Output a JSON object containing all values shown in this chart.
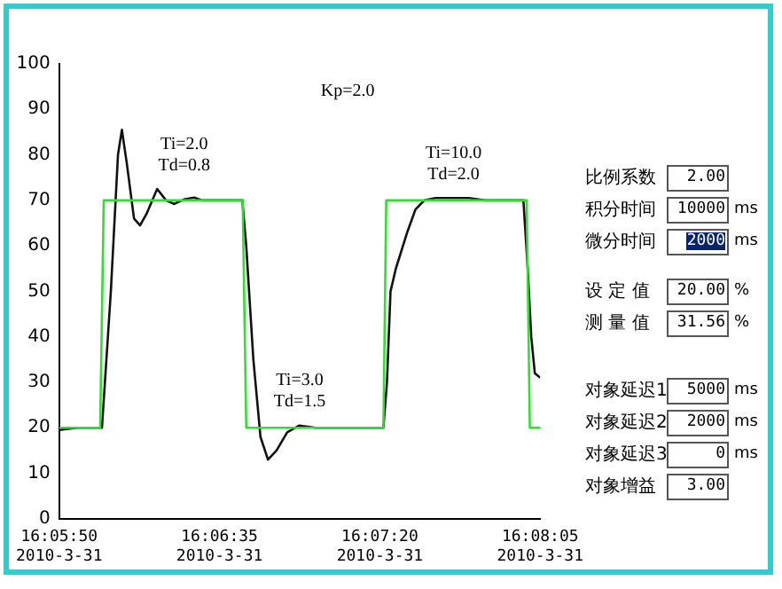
{
  "chart_data": [
    {
      "type": "line",
      "xlim": [
        "2010-03-31T16:05:50",
        "2010-03-31T16:08:05"
      ],
      "xticks": [
        {
          "value": "2010-03-31T16:05:50",
          "label": "16:05:50\n2010-3-31"
        },
        {
          "value": "2010-03-31T16:06:35",
          "label": "16:06:35\n2010-3-31"
        },
        {
          "value": "2010-03-31T16:07:20",
          "label": "16:07:20\n2010-3-31"
        },
        {
          "value": "2010-03-31T16:08:05",
          "label": "16:08:05\n2010-3-31"
        }
      ],
      "ylim": [
        0,
        100
      ],
      "yticks": [
        0,
        10,
        20,
        30,
        40,
        50,
        60,
        70,
        80,
        90,
        100
      ],
      "grid": false,
      "legend": false,
      "marker": "none",
      "line_style": "solid",
      "series": [
        {
          "color": "#33dd33",
          "x": [
            "2010-03-31T16:05:50",
            "2010-03-31T16:06:01.5",
            "2010-03-31T16:06:02.5",
            "2010-03-31T16:06:41.5",
            "2010-03-31T16:06:42.5",
            "2010-03-31T16:07:21",
            "2010-03-31T16:07:21.8",
            "2010-03-31T16:08:01.2",
            "2010-03-31T16:08:02.1",
            "2010-03-31T16:08:05"
          ],
          "values": [
            20,
            20,
            70,
            70,
            20,
            20,
            70,
            70,
            20,
            20
          ]
        },
        {
          "color": "#111111",
          "x": [
            "2010-03-31T16:05:50",
            "2010-03-31T16:05:55",
            "2010-03-31T16:06:02",
            "2010-03-31T16:06:04.5",
            "2010-03-31T16:06:06.5",
            "2010-03-31T16:06:07.6",
            "2010-03-31T16:06:09",
            "2010-03-31T16:06:11",
            "2010-03-31T16:06:12.7",
            "2010-03-31T16:06:14.5",
            "2010-03-31T16:06:17.5",
            "2010-03-31T16:06:20",
            "2010-03-31T16:06:22.3",
            "2010-03-31T16:06:25",
            "2010-03-31T16:06:27.9",
            "2010-03-31T16:06:30",
            "2010-03-31T16:06:41.4",
            "2010-03-31T16:06:42.5",
            "2010-03-31T16:06:44.5",
            "2010-03-31T16:06:46.5",
            "2010-03-31T16:06:48.6",
            "2010-03-31T16:06:51",
            "2010-03-31T16:06:54",
            "2010-03-31T16:06:57.4",
            "2010-03-31T16:07:02",
            "2010-03-31T16:07:21",
            "2010-03-31T16:07:22",
            "2010-03-31T16:07:23",
            "2010-03-31T16:07:24.5",
            "2010-03-31T16:07:27.7",
            "2010-03-31T16:07:30",
            "2010-03-31T16:07:32.5",
            "2010-03-31T16:07:35.6",
            "2010-03-31T16:07:45",
            "2010-03-31T16:07:49.5",
            "2010-03-31T16:08:00.3",
            "2010-03-31T16:08:01.5",
            "2010-03-31T16:08:02.5",
            "2010-03-31T16:08:03.5",
            "2010-03-31T16:08:05"
          ],
          "values": [
            19.5,
            20,
            20,
            50,
            80,
            85.5,
            78,
            66,
            64.5,
            67,
            72.5,
            70,
            69.2,
            70.2,
            70.6,
            70,
            70,
            60,
            35,
            18,
            13,
            15,
            19,
            20.5,
            20,
            20,
            30,
            50,
            55,
            63,
            68,
            70,
            70.5,
            70.5,
            70,
            70,
            55,
            40,
            32,
            31
          ]
        }
      ],
      "annotations": [
        "Kp=2.0",
        "Ti=2.0\nTd=0.8",
        "Ti=3.0\nTd=1.5",
        "Ti=10.0\nTd=2.0"
      ]
    },
    {
      "type": "other",
      "annotations": [
        "比例系数",
        "2.00",
        "积分时间",
        "10000",
        "ms",
        "微分时间",
        "2000",
        "ms",
        "设 定 值",
        "20.00",
        "%",
        "测 量 值",
        "31.56",
        "%",
        "对象延迟1",
        "5000",
        "ms",
        "对象延迟2",
        "2000",
        "ms",
        "对象延迟3",
        "0",
        "ms",
        "对象增益",
        "3.00"
      ]
    }
  ]
}
